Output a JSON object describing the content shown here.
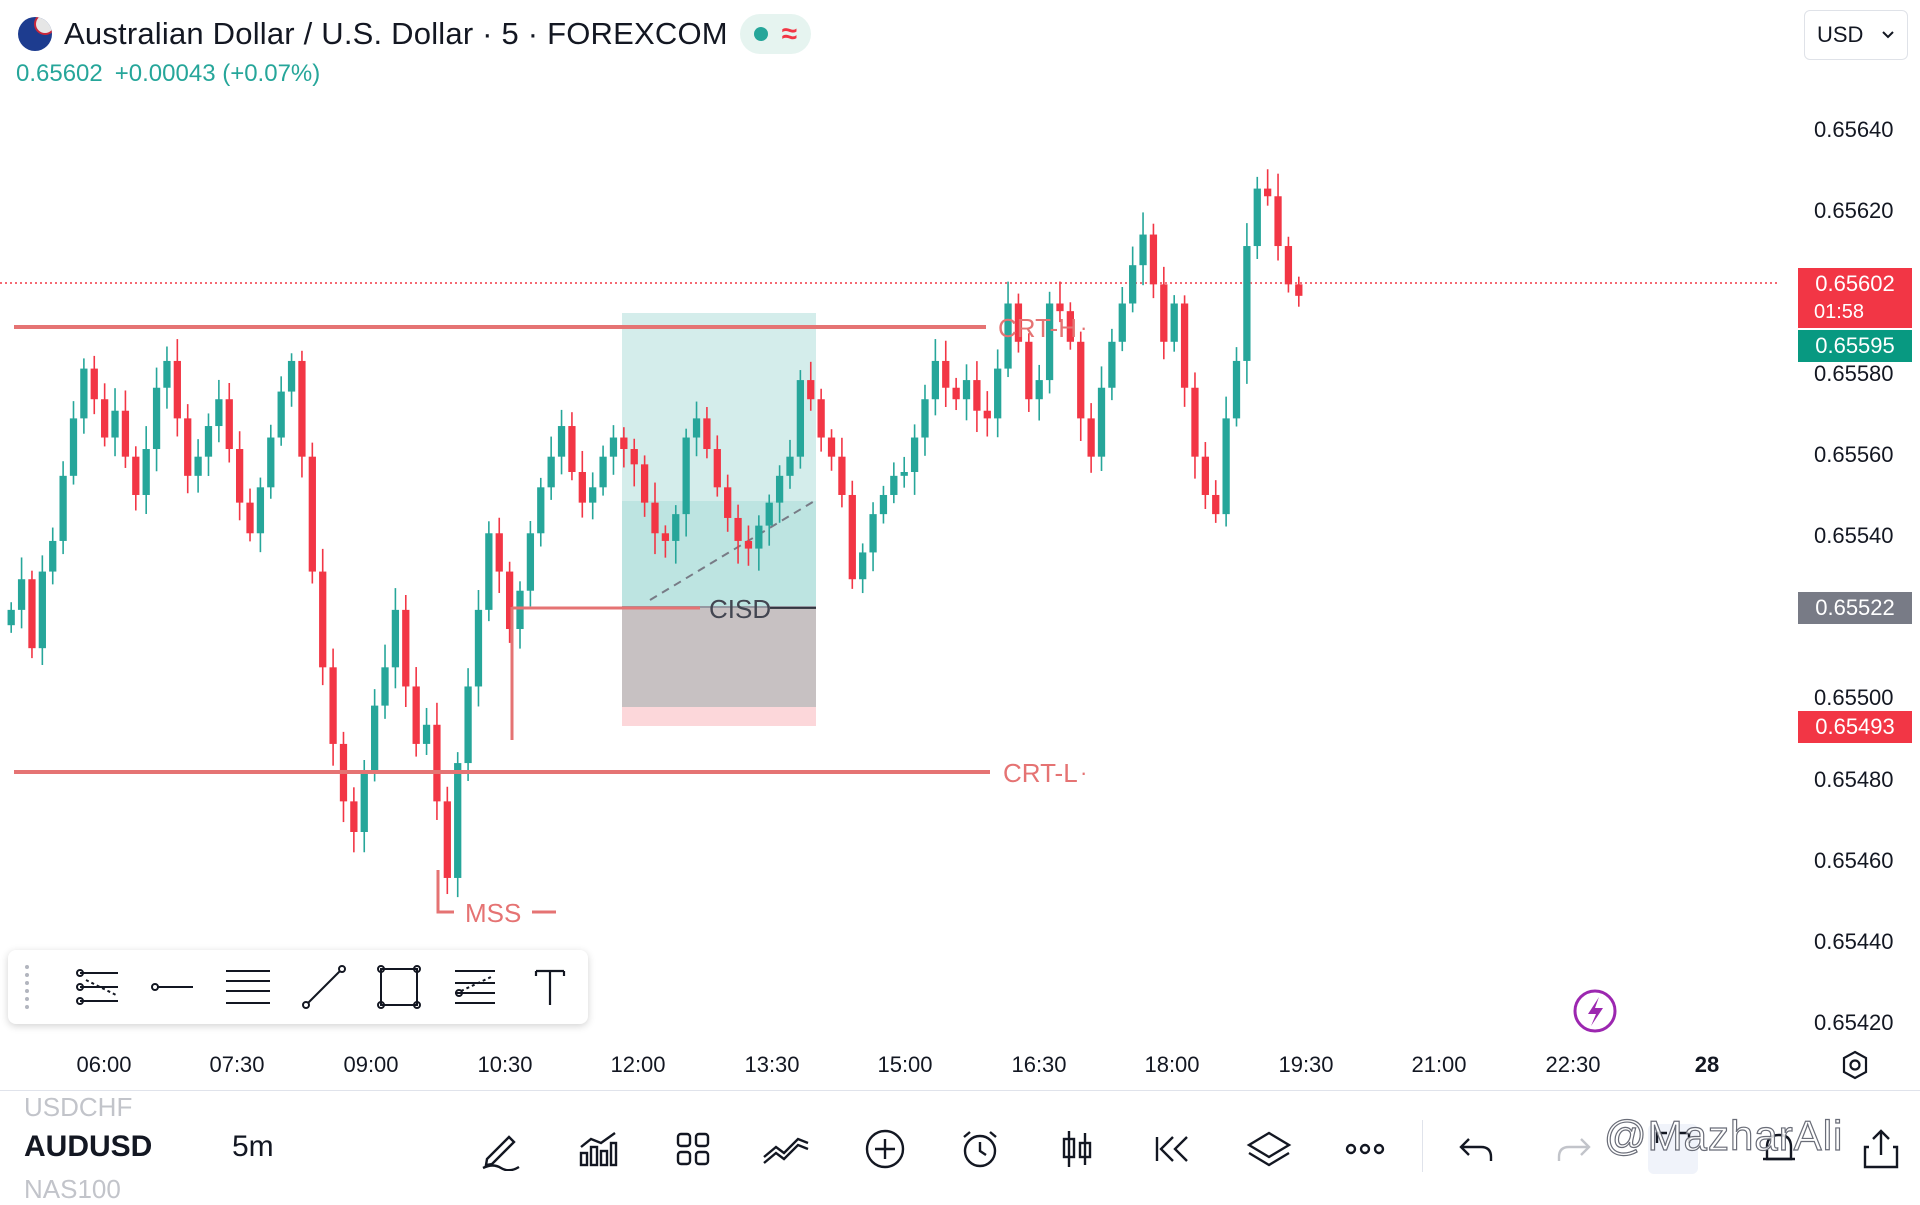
{
  "header": {
    "title": "Australian Dollar / U.S. Dollar · 5 · FOREXCOM",
    "last_price": "0.65602",
    "change": "+0.00043 (+0.07%)",
    "currency": "USD"
  },
  "price_axis": {
    "labels": [
      "0.65640",
      "0.65620",
      "0.65580",
      "0.65560",
      "0.65540",
      "0.65500",
      "0.65480",
      "0.65460",
      "0.65440",
      "0.65420"
    ],
    "tags": {
      "current_price": "0.65602",
      "countdown": "01:58",
      "bid": "0.65595",
      "crosshair": "0.65522",
      "stop": "0.65493"
    }
  },
  "time_axis": {
    "labels": [
      "06:00",
      "07:30",
      "09:00",
      "10:30",
      "12:00",
      "13:30",
      "15:00",
      "16:30",
      "18:00",
      "19:30",
      "21:00",
      "22:30",
      "28"
    ]
  },
  "annotations": {
    "crt_high": "CRT-H",
    "crt_low": "CRT-L",
    "cisd": "CISD",
    "mss": "MSS"
  },
  "drawing_toolbar": {
    "tools": [
      "horizontal-lines-icon",
      "ray-icon",
      "parallel-lines-icon",
      "trend-line-icon",
      "rectangle-icon",
      "fib-lines-icon",
      "text-icon"
    ]
  },
  "bottom_bar": {
    "prev_symbol": "USDCHF",
    "symbol": "AUDUSD",
    "next_symbol": "NAS100",
    "interval": "5m",
    "watermark": "@MazharAli"
  },
  "colors": {
    "up": "#26a69a",
    "down": "#f23645",
    "line": "#e57373",
    "profit_zone": "#26a69a",
    "loss_zone": "#f23645"
  },
  "chart_data": {
    "type": "candlestick",
    "symbol": "AUDUSD",
    "interval": "5",
    "ylim": [
      0.65415,
      0.6565
    ],
    "xlabels": [
      "06:00",
      "07:30",
      "09:00",
      "10:30",
      "12:00",
      "13:30",
      "15:00",
      "16:30",
      "18:00",
      "19:30",
      "21:00",
      "22:30",
      "28"
    ],
    "levels": {
      "crt_high": 0.65591,
      "crt_low": 0.65481,
      "cisd": 0.65522,
      "mss": 0.65448,
      "current": 0.65602
    },
    "closes": [
      0.6552,
      0.65528,
      0.6551,
      0.6553,
      0.65538,
      0.65555,
      0.6557,
      0.65583,
      0.65575,
      0.65565,
      0.65572,
      0.6556,
      0.6555,
      0.65562,
      0.65578,
      0.65585,
      0.6557,
      0.65555,
      0.6556,
      0.65568,
      0.65575,
      0.65562,
      0.65548,
      0.6554,
      0.65552,
      0.65565,
      0.65577,
      0.65585,
      0.6556,
      0.6553,
      0.65505,
      0.65485,
      0.6547,
      0.65462,
      0.65478,
      0.65495,
      0.65505,
      0.6552,
      0.655,
      0.65485,
      0.6549,
      0.6547,
      0.6545,
      0.6548,
      0.655,
      0.6552,
      0.6554,
      0.6553,
      0.65515,
      0.65525,
      0.6554,
      0.65552,
      0.6556,
      0.65568,
      0.65556,
      0.65548,
      0.65552,
      0.6556,
      0.65565,
      0.65562,
      0.65558,
      0.65548,
      0.6554,
      0.65538,
      0.65545,
      0.65565,
      0.6557,
      0.65562,
      0.65552,
      0.65544,
      0.65538,
      0.65536,
      0.65542,
      0.65548,
      0.65555,
      0.6556,
      0.6558,
      0.65575,
      0.65565,
      0.6556,
      0.6555,
      0.65528,
      0.65535,
      0.65545,
      0.6555,
      0.65555,
      0.65556,
      0.65565,
      0.65575,
      0.65585,
      0.65578,
      0.65575,
      0.6558,
      0.65572,
      0.6557,
      0.65583,
      0.656,
      0.6559,
      0.65575,
      0.6558,
      0.656,
      0.65598,
      0.6559,
      0.6557,
      0.6556,
      0.65578,
      0.6559,
      0.656,
      0.6561,
      0.65618,
      0.65605,
      0.6559,
      0.656,
      0.65578,
      0.6556,
      0.6555,
      0.65545,
      0.6557,
      0.65585,
      0.65615,
      0.6563,
      0.65628,
      0.65615,
      0.65605,
      0.65602
    ]
  }
}
